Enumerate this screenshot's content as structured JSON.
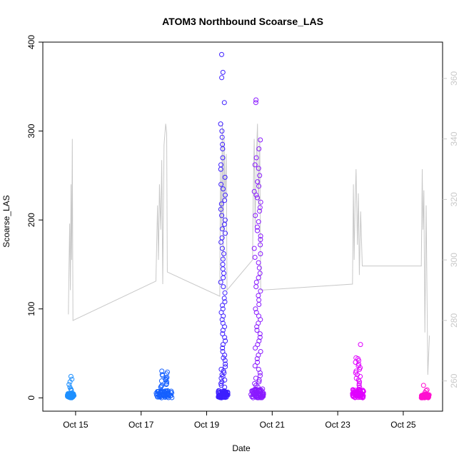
{
  "chart_data": {
    "type": "scatter",
    "title": "ATOM3 Northbound Scoarse_LAS",
    "xlabel": "Date",
    "ylabel": "Scoarse_LAS",
    "x_ticks": [
      {
        "label": "Oct 15",
        "day": 15
      },
      {
        "label": "Oct 17",
        "day": 17
      },
      {
        "label": "Oct 19",
        "day": 19
      },
      {
        "label": "Oct 21",
        "day": 21
      },
      {
        "label": "Oct 23",
        "day": 23
      },
      {
        "label": "Oct 25",
        "day": 25
      }
    ],
    "xlim_days": [
      14.0,
      26.2
    ],
    "ylim": [
      -15,
      400
    ],
    "y_ticks": [
      0,
      100,
      200,
      300,
      400
    ],
    "y2lim": [
      250,
      372
    ],
    "y2_ticks": [
      260,
      280,
      300,
      320,
      340,
      360
    ],
    "y2_color": "#c8c8c8",
    "point_clusters": [
      {
        "day_start": 14.75,
        "day_end": 14.95,
        "color": "#1e90ff",
        "base_max": 5,
        "spikes": [
          24,
          21,
          18,
          15,
          12,
          10,
          9,
          8
        ]
      },
      {
        "day_start": 17.45,
        "day_end": 17.95,
        "color": "#1560ff",
        "base_max": 8,
        "spikes": [
          30,
          29,
          27,
          26,
          25,
          23,
          22,
          21,
          20,
          19,
          18,
          16,
          15,
          14,
          13,
          12
        ]
      },
      {
        "day_start": 19.35,
        "day_end": 19.65,
        "color": "#3d1fff",
        "base_max": 8,
        "spikes": [
          386,
          366,
          360,
          332,
          308,
          300,
          293,
          285,
          280,
          270,
          262,
          257,
          248,
          240,
          235,
          228,
          222,
          218,
          212,
          205,
          200,
          195,
          190,
          185,
          180,
          175,
          168,
          162,
          156,
          150,
          145,
          140,
          135,
          130,
          125,
          118,
          112,
          108,
          104,
          100,
          96,
          92,
          88,
          84,
          80,
          76,
          72,
          68,
          64,
          60,
          56,
          52,
          48,
          45,
          42,
          38,
          35,
          32,
          30,
          28,
          26,
          24,
          22,
          20,
          18,
          16,
          14,
          12
        ]
      },
      {
        "day_start": 20.35,
        "day_end": 20.75,
        "color": "#8a1aff",
        "base_max": 10,
        "spikes": [
          335,
          332,
          290,
          280,
          270,
          262,
          258,
          250,
          243,
          238,
          232,
          228,
          225,
          220,
          214,
          210,
          205,
          198,
          192,
          188,
          182,
          178,
          172,
          168,
          162,
          158,
          152,
          146,
          140,
          135,
          130,
          125,
          120,
          115,
          110,
          105,
          100,
          96,
          92,
          88,
          84,
          80,
          76,
          72,
          68,
          64,
          60,
          56,
          52,
          48,
          44,
          40,
          36,
          32,
          28,
          25,
          22,
          20,
          18,
          16,
          14,
          12
        ]
      },
      {
        "day_start": 23.45,
        "day_end": 23.8,
        "color": "#e000ff",
        "base_max": 10,
        "spikes": [
          60,
          45,
          44,
          42,
          40,
          38,
          36,
          34,
          32,
          30,
          28,
          26,
          24,
          22,
          20,
          18,
          16,
          14,
          12
        ]
      },
      {
        "day_start": 25.55,
        "day_end": 25.8,
        "color": "#ff10d0",
        "base_max": 4,
        "spikes": [
          14,
          9,
          8,
          6
        ]
      }
    ],
    "temperature_line": {
      "color": "#c8c8c8",
      "points": [
        [
          14.78,
          282
        ],
        [
          14.8,
          298
        ],
        [
          14.82,
          312
        ],
        [
          14.84,
          290
        ],
        [
          14.86,
          325
        ],
        [
          14.88,
          300
        ],
        [
          14.9,
          340
        ],
        [
          14.92,
          280
        ],
        [
          17.45,
          293
        ],
        [
          17.5,
          318
        ],
        [
          17.53,
          300
        ],
        [
          17.56,
          325
        ],
        [
          17.6,
          310
        ],
        [
          17.63,
          333
        ],
        [
          17.66,
          292
        ],
        [
          17.7,
          338
        ],
        [
          17.75,
          345
        ],
        [
          17.78,
          342
        ],
        [
          17.8,
          296
        ],
        [
          19.4,
          288
        ],
        [
          19.42,
          330
        ],
        [
          19.45,
          310
        ],
        [
          19.48,
          345
        ],
        [
          19.5,
          300
        ],
        [
          19.53,
          340
        ],
        [
          19.56,
          320
        ],
        [
          19.6,
          335
        ],
        [
          19.62,
          290
        ],
        [
          20.4,
          300
        ],
        [
          20.42,
          320
        ],
        [
          20.45,
          340
        ],
        [
          20.48,
          310
        ],
        [
          20.52,
          335
        ],
        [
          20.55,
          345
        ],
        [
          20.58,
          318
        ],
        [
          20.62,
          340
        ],
        [
          20.65,
          290
        ],
        [
          23.45,
          292
        ],
        [
          23.48,
          325
        ],
        [
          23.5,
          300
        ],
        [
          23.53,
          318
        ],
        [
          23.56,
          330
        ],
        [
          23.6,
          305
        ],
        [
          23.63,
          322
        ],
        [
          23.66,
          295
        ],
        [
          23.7,
          316
        ],
        [
          23.75,
          298
        ],
        [
          25.55,
          298
        ],
        [
          25.58,
          330
        ],
        [
          25.6,
          310
        ],
        [
          25.63,
          323
        ],
        [
          25.66,
          276
        ],
        [
          25.7,
          318
        ],
        [
          25.75,
          262
        ],
        [
          25.8,
          275
        ]
      ]
    }
  }
}
